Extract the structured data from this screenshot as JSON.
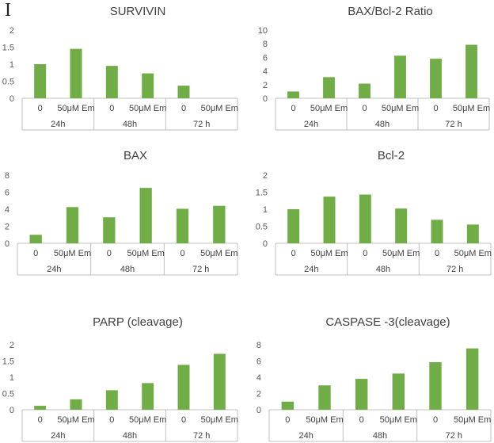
{
  "panel_label": "I",
  "chart_data": [
    {
      "type": "bar",
      "title": "SURVIVIN",
      "ylim": [
        0,
        2
      ],
      "yticks": [
        "0",
        "0.5",
        "1",
        "1.5",
        "2"
      ],
      "categories": [
        "0",
        "50μM Em",
        "0",
        "50μM Em",
        "0",
        "50μM Em"
      ],
      "groups": [
        "24h",
        "48h",
        "72 h"
      ],
      "values": [
        1.0,
        1.45,
        0.95,
        0.73,
        0.37,
        null
      ]
    },
    {
      "type": "bar",
      "title": "BAX/Bcl-2 Ratio",
      "ylim": [
        0,
        10
      ],
      "yticks": [
        "0",
        "2",
        "4",
        "6",
        "8",
        "10"
      ],
      "categories": [
        "0",
        "50μM Em",
        "0",
        "50μM Em",
        "0",
        "50μM Em"
      ],
      "groups": [
        "24h",
        "48h",
        "72 h"
      ],
      "values": [
        1.0,
        3.1,
        2.15,
        6.25,
        5.8,
        7.85
      ]
    },
    {
      "type": "bar",
      "title": "BAX",
      "ylim": [
        0,
        8
      ],
      "yticks": [
        "0",
        "2",
        "4",
        "6",
        "8"
      ],
      "categories": [
        "0",
        "50μM Em",
        "0",
        "50μM Em",
        "0",
        "50μM Em"
      ],
      "groups": [
        "24h",
        "48h",
        "72 h"
      ],
      "values": [
        1.0,
        4.25,
        3.05,
        6.5,
        4.05,
        4.4
      ]
    },
    {
      "type": "bar",
      "title": "Bcl-2",
      "ylim": [
        0,
        2
      ],
      "yticks": [
        "0",
        "0.5",
        "1",
        "1.5",
        "2"
      ],
      "categories": [
        "0",
        "50μM Em",
        "0",
        "50μM Em",
        "0",
        "50μM Em"
      ],
      "groups": [
        "24h",
        "48h",
        "72 h"
      ],
      "values": [
        1.0,
        1.37,
        1.43,
        1.02,
        0.69,
        0.55
      ]
    },
    {
      "type": "bar",
      "title": "PARP (cleavage)",
      "ylim": [
        0,
        2
      ],
      "yticks": [
        "0",
        "0.5",
        "1",
        "1.5",
        "2"
      ],
      "categories": [
        "0",
        "50μM Em",
        "0",
        "50μM Em",
        "0",
        "50μM Em"
      ],
      "groups": [
        "24h",
        "48h",
        "72 h"
      ],
      "values": [
        0.12,
        0.32,
        0.6,
        0.82,
        1.38,
        1.72
      ]
    },
    {
      "type": "bar",
      "title": "CASPASE -3(cleavage)",
      "ylim": [
        0,
        8
      ],
      "yticks": [
        "0",
        "2",
        "4",
        "6",
        "8"
      ],
      "categories": [
        "0",
        "50μM Em",
        "0",
        "50μM Em",
        "0",
        "50μM Em"
      ],
      "groups": [
        "24h",
        "48h",
        "72 h"
      ],
      "values": [
        1.0,
        3.0,
        3.8,
        4.45,
        5.85,
        7.55
      ]
    }
  ]
}
